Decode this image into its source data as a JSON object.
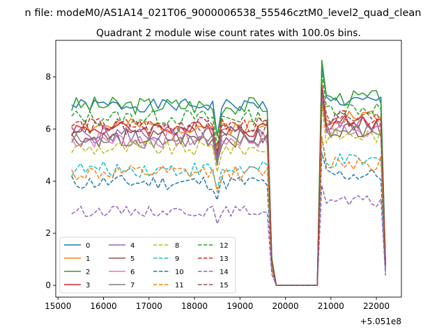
{
  "figure": {
    "suptitle": "n file: modeM0/AS1A14_021T06_9000006538_55546cztM0_level2_quad_clean",
    "title": "Quadrant 2 module wise count rates with 100.0s bins.",
    "offset_label": "+5.051e8"
  },
  "chart_data": {
    "type": "line",
    "title": "Quadrant 2 module wise count rates with 100.0s bins.",
    "xlabel": "",
    "ylabel": "",
    "x_offset": 505100000,
    "xlim": [
      14950,
      22550
    ],
    "ylim": [
      -0.45,
      9.4
    ],
    "xticks": [
      15000,
      16000,
      17000,
      18000,
      19000,
      20000,
      21000,
      22000
    ],
    "xtick_labels": [
      "15000",
      "16000",
      "17000",
      "18000",
      "19000",
      "20000",
      "21000",
      "22000"
    ],
    "yticks": [
      0,
      2,
      4,
      6,
      8
    ],
    "ytick_labels": [
      "0",
      "2",
      "4",
      "6",
      "8"
    ],
    "grid": false,
    "legend": {
      "position": "lower-left",
      "ncol": 4
    },
    "series": [
      {
        "name": "0",
        "color": "#1f77b4",
        "dash": "solid",
        "base1": 6.9,
        "amp1": 0.25,
        "base2": 7.05,
        "amp2": 0.25,
        "seed": 1
      },
      {
        "name": "1",
        "color": "#ff7f0e",
        "dash": "solid",
        "base1": 6.1,
        "amp1": 0.3,
        "base2": 6.5,
        "amp2": 0.3,
        "seed": 2
      },
      {
        "name": "2",
        "color": "#2ca02c",
        "dash": "solid",
        "base1": 6.9,
        "amp1": 0.35,
        "base2": 7.2,
        "amp2": 0.3,
        "seed": 3
      },
      {
        "name": "3",
        "color": "#d62728",
        "dash": "solid",
        "base1": 6.0,
        "amp1": 0.3,
        "base2": 6.25,
        "amp2": 0.3,
        "seed": 4
      },
      {
        "name": "4",
        "color": "#9467bd",
        "dash": "solid",
        "base1": 5.8,
        "amp1": 0.35,
        "base2": 6.2,
        "amp2": 0.3,
        "seed": 5
      },
      {
        "name": "5",
        "color": "#8c564b",
        "dash": "solid",
        "base1": 5.65,
        "amp1": 0.35,
        "base2": 6.0,
        "amp2": 0.3,
        "seed": 6
      },
      {
        "name": "6",
        "color": "#e377c2",
        "dash": "solid",
        "base1": 5.6,
        "amp1": 0.35,
        "base2": 6.0,
        "amp2": 0.3,
        "seed": 7
      },
      {
        "name": "7",
        "color": "#7f7f7f",
        "dash": "solid",
        "base1": 5.55,
        "amp1": 0.3,
        "base2": 5.9,
        "amp2": 0.3,
        "seed": 8
      },
      {
        "name": "8",
        "color": "#bcbd22",
        "dash": "dashed",
        "base1": 5.25,
        "amp1": 0.3,
        "base2": 5.75,
        "amp2": 0.3,
        "seed": 9
      },
      {
        "name": "9",
        "color": "#17becf",
        "dash": "dashed",
        "base1": 4.45,
        "amp1": 0.3,
        "base2": 4.75,
        "amp2": 0.3,
        "seed": 10
      },
      {
        "name": "10",
        "color": "#1f77b4",
        "dash": "dashed",
        "base1": 3.95,
        "amp1": 0.3,
        "base2": 4.25,
        "amp2": 0.3,
        "seed": 11
      },
      {
        "name": "11",
        "color": "#ff7f0e",
        "dash": "dashed",
        "base1": 4.3,
        "amp1": 0.3,
        "base2": 4.75,
        "amp2": 0.35,
        "seed": 12
      },
      {
        "name": "12",
        "color": "#2ca02c",
        "dash": "dashed",
        "base1": 6.45,
        "amp1": 0.3,
        "base2": 6.8,
        "amp2": 0.3,
        "seed": 13
      },
      {
        "name": "13",
        "color": "#d62728",
        "dash": "dashed",
        "base1": 6.15,
        "amp1": 0.3,
        "base2": 6.4,
        "amp2": 0.3,
        "seed": 14
      },
      {
        "name": "14",
        "color": "#9467bd",
        "dash": "dashed",
        "base1": 2.85,
        "amp1": 0.2,
        "base2": 3.2,
        "amp2": 0.25,
        "seed": 15
      },
      {
        "name": "15",
        "color": "#8c564b",
        "dash": "dashed",
        "base1": 6.05,
        "amp1": 0.3,
        "base2": 6.4,
        "amp2": 0.3,
        "seed": 16
      }
    ],
    "time_profile": {
      "start": 15300,
      "step": 100,
      "gap_start": 19800,
      "gap_end": 20700,
      "end": 22200,
      "dip_time": 18500,
      "dip_factor": 0.83,
      "drop_time": 19700,
      "drop_factor": 0.15,
      "peak_time": 20800,
      "peak_factor": 1.2,
      "tail_time": 22200,
      "tail_factor": 0.12,
      "gap_value": 0
    }
  }
}
